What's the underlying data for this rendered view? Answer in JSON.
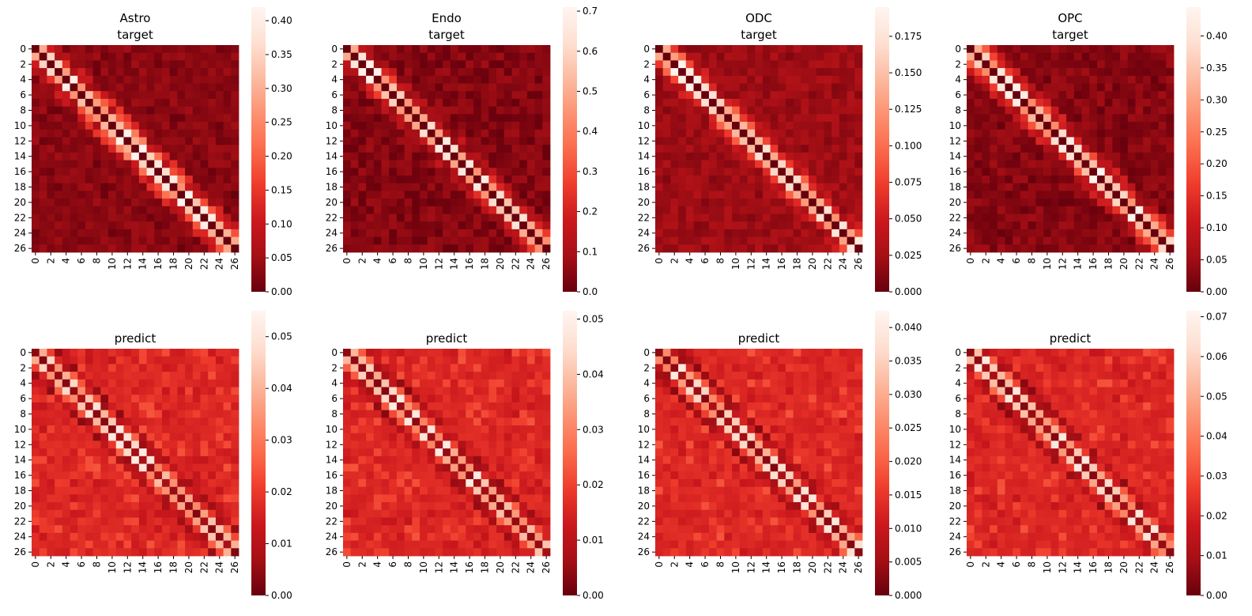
{
  "figure": {
    "panels": [
      {
        "key": "astro-target",
        "title_lines": [
          "Astro",
          "target"
        ],
        "max": 0.42,
        "diag_peak": 1.0,
        "band": 0.65,
        "noise": 0.55,
        "base": 0.0,
        "seed": 11,
        "cb_ticks": [
          "0.00",
          "0.05",
          "0.10",
          "0.15",
          "0.20",
          "0.25",
          "0.30",
          "0.35",
          "0.40"
        ],
        "cb_tick_values": [
          0,
          0.05,
          0.1,
          0.15,
          0.2,
          0.25,
          0.3,
          0.35,
          0.4
        ]
      },
      {
        "key": "endo-target",
        "title_lines": [
          "Endo",
          "target"
        ],
        "max": 0.71,
        "diag_peak": 1.0,
        "band": 0.45,
        "noise": 0.18,
        "base": 0.0,
        "seed": 23,
        "cb_ticks": [
          "0.0",
          "0.1",
          "0.2",
          "0.3",
          "0.4",
          "0.5",
          "0.6",
          "0.7"
        ],
        "cb_tick_values": [
          0,
          0.1,
          0.2,
          0.3,
          0.4,
          0.5,
          0.6,
          0.7
        ]
      },
      {
        "key": "odc-target",
        "title_lines": [
          "ODC",
          "target"
        ],
        "max": 0.195,
        "diag_peak": 1.0,
        "band": 0.55,
        "noise": 0.4,
        "base": 0.05,
        "seed": 37,
        "cb_ticks": [
          "0.000",
          "0.025",
          "0.050",
          "0.075",
          "0.100",
          "0.125",
          "0.150",
          "0.175"
        ],
        "cb_tick_values": [
          0,
          0.025,
          0.05,
          0.075,
          0.1,
          0.125,
          0.15,
          0.175
        ]
      },
      {
        "key": "opc-target",
        "title_lines": [
          "OPC",
          "target"
        ],
        "max": 0.445,
        "diag_peak": 1.0,
        "band": 0.55,
        "noise": 0.35,
        "base": 0.0,
        "seed": 51,
        "cb_ticks": [
          "0.00",
          "0.05",
          "0.10",
          "0.15",
          "0.20",
          "0.25",
          "0.30",
          "0.35",
          "0.40"
        ],
        "cb_tick_values": [
          0,
          0.05,
          0.1,
          0.15,
          0.2,
          0.25,
          0.3,
          0.35,
          0.4
        ]
      },
      {
        "key": "astro-predict",
        "title_lines": [
          "predict"
        ],
        "max": 0.055,
        "diag_peak": 0.95,
        "band": 0.55,
        "noise": 0.75,
        "base": 0.22,
        "seed": 67,
        "cb_ticks": [
          "0.00",
          "0.01",
          "0.02",
          "0.03",
          "0.04",
          "0.05"
        ],
        "cb_tick_values": [
          0,
          0.01,
          0.02,
          0.03,
          0.04,
          0.05
        ]
      },
      {
        "key": "endo-predict",
        "title_lines": [
          "predict"
        ],
        "max": 0.0515,
        "diag_peak": 0.95,
        "band": 0.55,
        "noise": 0.75,
        "base": 0.22,
        "seed": 79,
        "cb_ticks": [
          "0.00",
          "0.01",
          "0.02",
          "0.03",
          "0.04",
          "0.05"
        ],
        "cb_tick_values": [
          0,
          0.01,
          0.02,
          0.03,
          0.04,
          0.05
        ]
      },
      {
        "key": "odc-predict",
        "title_lines": [
          "predict"
        ],
        "max": 0.0425,
        "diag_peak": 0.95,
        "band": 0.55,
        "noise": 0.75,
        "base": 0.22,
        "seed": 97,
        "cb_ticks": [
          "0.000",
          "0.005",
          "0.010",
          "0.015",
          "0.020",
          "0.025",
          "0.030",
          "0.035",
          "0.040"
        ],
        "cb_tick_values": [
          0,
          0.005,
          0.01,
          0.015,
          0.02,
          0.025,
          0.03,
          0.035,
          0.04
        ]
      },
      {
        "key": "opc-predict",
        "title_lines": [
          "predict"
        ],
        "max": 0.0715,
        "diag_peak": 0.95,
        "band": 0.55,
        "noise": 0.75,
        "base": 0.22,
        "seed": 113,
        "cb_ticks": [
          "0.00",
          "0.01",
          "0.02",
          "0.03",
          "0.04",
          "0.05",
          "0.06",
          "0.07"
        ],
        "cb_tick_values": [
          0,
          0.01,
          0.02,
          0.03,
          0.04,
          0.05,
          0.06,
          0.07
        ]
      }
    ]
  },
  "chart_data": [
    {
      "type": "heatmap",
      "title": "Astro\ntarget",
      "grid_size": 27,
      "x_ticks": [
        "0",
        "2",
        "4",
        "6",
        "8",
        "10",
        "12",
        "14",
        "16",
        "18",
        "20",
        "22",
        "24",
        "26"
      ],
      "y_ticks": [
        "0",
        "2",
        "4",
        "6",
        "8",
        "10",
        "12",
        "14",
        "16",
        "18",
        "20",
        "22",
        "24",
        "26"
      ],
      "colorbar_range": [
        0,
        0.42
      ],
      "colormap": "Reds_r"
    },
    {
      "type": "heatmap",
      "title": "Endo\ntarget",
      "grid_size": 27,
      "x_ticks": [
        "0",
        "2",
        "4",
        "6",
        "8",
        "10",
        "12",
        "14",
        "16",
        "18",
        "20",
        "22",
        "24",
        "26"
      ],
      "y_ticks": [
        "0",
        "2",
        "4",
        "6",
        "8",
        "10",
        "12",
        "14",
        "16",
        "18",
        "20",
        "22",
        "24",
        "26"
      ],
      "colorbar_range": [
        0,
        0.71
      ],
      "colormap": "Reds_r"
    },
    {
      "type": "heatmap",
      "title": "ODC\ntarget",
      "grid_size": 27,
      "x_ticks": [
        "0",
        "2",
        "4",
        "6",
        "8",
        "10",
        "12",
        "14",
        "16",
        "18",
        "20",
        "22",
        "24",
        "26"
      ],
      "y_ticks": [
        "0",
        "2",
        "4",
        "6",
        "8",
        "10",
        "12",
        "14",
        "16",
        "18",
        "20",
        "22",
        "24",
        "26"
      ],
      "colorbar_range": [
        0,
        0.195
      ],
      "colormap": "Reds_r"
    },
    {
      "type": "heatmap",
      "title": "OPC\ntarget",
      "grid_size": 27,
      "x_ticks": [
        "0",
        "2",
        "4",
        "6",
        "8",
        "10",
        "12",
        "14",
        "16",
        "18",
        "20",
        "22",
        "24",
        "26"
      ],
      "y_ticks": [
        "0",
        "2",
        "4",
        "6",
        "8",
        "10",
        "12",
        "14",
        "16",
        "18",
        "20",
        "22",
        "24",
        "26"
      ],
      "colorbar_range": [
        0,
        0.445
      ],
      "colormap": "Reds_r"
    },
    {
      "type": "heatmap",
      "title": "predict",
      "grid_size": 27,
      "x_ticks": [
        "0",
        "2",
        "4",
        "6",
        "8",
        "10",
        "12",
        "14",
        "16",
        "18",
        "20",
        "22",
        "24",
        "26"
      ],
      "y_ticks": [
        "0",
        "2",
        "4",
        "6",
        "8",
        "10",
        "12",
        "14",
        "16",
        "18",
        "20",
        "22",
        "24",
        "26"
      ],
      "colorbar_range": [
        0,
        0.055
      ],
      "colormap": "Reds_r"
    },
    {
      "type": "heatmap",
      "title": "predict",
      "grid_size": 27,
      "x_ticks": [
        "0",
        "2",
        "4",
        "6",
        "8",
        "10",
        "12",
        "14",
        "16",
        "18",
        "20",
        "22",
        "24",
        "26"
      ],
      "y_ticks": [
        "0",
        "2",
        "4",
        "6",
        "8",
        "10",
        "12",
        "14",
        "16",
        "18",
        "20",
        "22",
        "24",
        "26"
      ],
      "colorbar_range": [
        0,
        0.0515
      ],
      "colormap": "Reds_r"
    },
    {
      "type": "heatmap",
      "title": "predict",
      "grid_size": 27,
      "x_ticks": [
        "0",
        "2",
        "4",
        "6",
        "8",
        "10",
        "12",
        "14",
        "16",
        "18",
        "20",
        "22",
        "24",
        "26"
      ],
      "y_ticks": [
        "0",
        "2",
        "4",
        "6",
        "8",
        "10",
        "12",
        "14",
        "16",
        "18",
        "20",
        "22",
        "24",
        "26"
      ],
      "colorbar_range": [
        0,
        0.0425
      ],
      "colormap": "Reds_r"
    },
    {
      "type": "heatmap",
      "title": "predict",
      "grid_size": 27,
      "x_ticks": [
        "0",
        "2",
        "4",
        "6",
        "8",
        "10",
        "12",
        "14",
        "16",
        "18",
        "20",
        "22",
        "24",
        "26"
      ],
      "y_ticks": [
        "0",
        "2",
        "4",
        "6",
        "8",
        "10",
        "12",
        "14",
        "16",
        "18",
        "20",
        "22",
        "24",
        "26"
      ],
      "colorbar_range": [
        0,
        0.0715
      ],
      "colormap": "Reds_r"
    }
  ],
  "axes": {
    "grid_size": 27,
    "tick_labels": [
      "0",
      "2",
      "4",
      "6",
      "8",
      "10",
      "12",
      "14",
      "16",
      "18",
      "20",
      "22",
      "24",
      "26"
    ]
  },
  "colors": {
    "colormap_stops": [
      "#67000d",
      "#a50f15",
      "#cb181d",
      "#ef3b2c",
      "#fb6a4a",
      "#fc9272",
      "#fcbba1",
      "#fee0d2",
      "#fff5f0"
    ]
  }
}
